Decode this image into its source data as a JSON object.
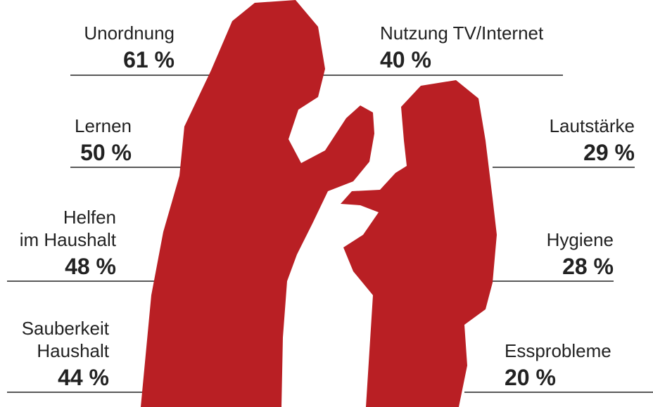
{
  "items": [
    {
      "label": [
        "Unordnung"
      ],
      "value": "61 %"
    },
    {
      "label": [
        "Nutzung TV/Internet"
      ],
      "value": "40 %"
    },
    {
      "label": [
        "Lernen"
      ],
      "value": "50 %"
    },
    {
      "label": [
        "Lautstärke"
      ],
      "value": "29 %"
    },
    {
      "label": [
        "Helfen",
        "im Haushalt"
      ],
      "value": "48 %"
    },
    {
      "label": [
        "Hygiene"
      ],
      "value": "28 %"
    },
    {
      "label": [
        "Sauberkeit",
        "Haushalt"
      ],
      "value": "44 %"
    },
    {
      "label": [
        "Essprobleme"
      ],
      "value": "20 %"
    }
  ]
}
